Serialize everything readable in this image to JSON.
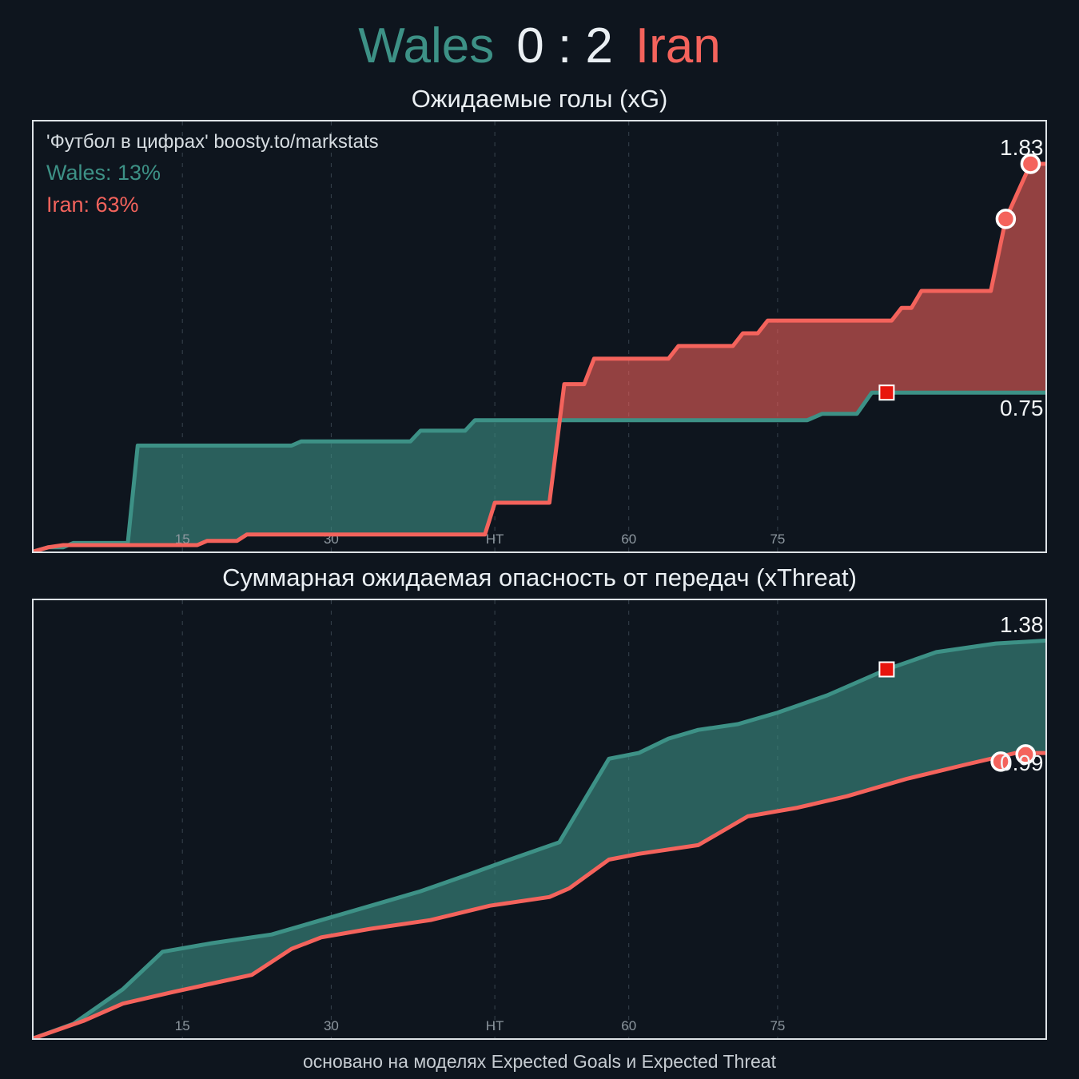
{
  "scoreboard": {
    "home": "Wales",
    "score": "0 : 2",
    "away": "Iran"
  },
  "watermark": {
    "credit": "'Футбол в цифрах' boosty.to/markstats",
    "home_prob": "Wales: 13%",
    "away_prob": "Iran: 63%"
  },
  "footer": {
    "note": "основано на моделях Expected Goals и Expected Threat"
  },
  "theme": {
    "bg": "#0e151e",
    "panel_border": "#dde2e6",
    "grid": "#37424d",
    "tick": "#8d979f",
    "text": "#eaeff3",
    "muted": "#c5cbd1",
    "muted_strong": "#d6dce1",
    "home": "#3d9186",
    "away": "#f4635c",
    "marker_red": "#e8150d",
    "label": "#f2f5f7"
  },
  "chart_data": [
    {
      "type": "line",
      "title": "Ожидаемые голы (xG)",
      "xlim": [
        0,
        102
      ],
      "ylim": [
        0,
        2.03
      ],
      "grid": "vertical-dashed",
      "legend": "none",
      "x_ticks": [
        {
          "value": 15,
          "label": "15"
        },
        {
          "value": 30,
          "label": "30"
        },
        {
          "value": 46.5,
          "label": "HT"
        },
        {
          "value": 60,
          "label": "60"
        },
        {
          "value": 75,
          "label": "75"
        }
      ],
      "series": [
        {
          "name": "Wales",
          "color": "#3d9186",
          "fill_opacity": 0.6,
          "end_value": 0.75,
          "points": [
            [
              0,
              0
            ],
            [
              1.5,
              0.02
            ],
            [
              3,
              0.02
            ],
            [
              4,
              0.04
            ],
            [
              9.5,
              0.04
            ],
            [
              10.5,
              0.5
            ],
            [
              26,
              0.5
            ],
            [
              27,
              0.52
            ],
            [
              38,
              0.52
            ],
            [
              39,
              0.57
            ],
            [
              43.5,
              0.57
            ],
            [
              44.5,
              0.62
            ],
            [
              78,
              0.62
            ],
            [
              79.5,
              0.65
            ],
            [
              83,
              0.65
            ],
            [
              84.5,
              0.75
            ],
            [
              102,
              0.75
            ]
          ]
        },
        {
          "name": "Iran",
          "color": "#f4635c",
          "fill_opacity": 0.58,
          "end_value": 1.83,
          "points": [
            [
              0,
              0
            ],
            [
              1.5,
              0.02
            ],
            [
              3,
              0.03
            ],
            [
              16.5,
              0.03
            ],
            [
              17.5,
              0.05
            ],
            [
              20.5,
              0.05
            ],
            [
              21.5,
              0.08
            ],
            [
              45.5,
              0.08
            ],
            [
              46.5,
              0.23
            ],
            [
              52,
              0.23
            ],
            [
              53.5,
              0.79
            ],
            [
              55.5,
              0.79
            ],
            [
              56.5,
              0.91
            ],
            [
              64,
              0.91
            ],
            [
              65,
              0.97
            ],
            [
              70.5,
              0.97
            ],
            [
              71.5,
              1.03
            ],
            [
              73,
              1.03
            ],
            [
              74,
              1.09
            ],
            [
              86.5,
              1.09
            ],
            [
              87.5,
              1.15
            ],
            [
              88.5,
              1.15
            ],
            [
              89.5,
              1.23
            ],
            [
              96.5,
              1.23
            ],
            [
              98,
              1.57
            ],
            [
              100.5,
              1.83
            ],
            [
              102,
              1.83
            ]
          ]
        }
      ],
      "markers": [
        {
          "shape": "square",
          "name": "red-card-marker",
          "x": 86,
          "y": 0.75,
          "color": "#e8150d"
        },
        {
          "shape": "circle",
          "name": "goal-marker",
          "x": 98,
          "y": 1.57,
          "color": "#f4635c"
        },
        {
          "shape": "circle",
          "name": "goal-marker",
          "x": 100.5,
          "y": 1.83,
          "color": "#f4635c"
        }
      ],
      "annotations": [
        {
          "text": "1.83",
          "x": 101.8,
          "y": 1.9
        },
        {
          "text": "0.75",
          "x": 101.8,
          "y": 0.67
        }
      ]
    },
    {
      "type": "line",
      "title": "Суммарная ожидаемая опасность от передач (xThreat)",
      "xlim": [
        0,
        102
      ],
      "ylim": [
        0,
        1.52
      ],
      "grid": "vertical-dashed",
      "legend": "none",
      "x_ticks": [
        {
          "value": 15,
          "label": "15"
        },
        {
          "value": 30,
          "label": "30"
        },
        {
          "value": 46.5,
          "label": "HT"
        },
        {
          "value": 60,
          "label": "60"
        },
        {
          "value": 75,
          "label": "75"
        }
      ],
      "series": [
        {
          "name": "Wales",
          "color": "#3d9186",
          "fill_opacity": 0.6,
          "end_value": 1.38,
          "points": [
            [
              0,
              0
            ],
            [
              4,
              0.05
            ],
            [
              9,
              0.17
            ],
            [
              13,
              0.3
            ],
            [
              18,
              0.33
            ],
            [
              24,
              0.36
            ],
            [
              29,
              0.41
            ],
            [
              34,
              0.46
            ],
            [
              39,
              0.51
            ],
            [
              44,
              0.57
            ],
            [
              48,
              0.62
            ],
            [
              53,
              0.68
            ],
            [
              58,
              0.97
            ],
            [
              61,
              0.99
            ],
            [
              64,
              1.04
            ],
            [
              67,
              1.07
            ],
            [
              71,
              1.09
            ],
            [
              75,
              1.13
            ],
            [
              80,
              1.19
            ],
            [
              86,
              1.28
            ],
            [
              91,
              1.34
            ],
            [
              97,
              1.37
            ],
            [
              102,
              1.38
            ]
          ]
        },
        {
          "name": "Iran",
          "color": "#f4635c",
          "fill_opacity": 0.58,
          "end_value": 0.99,
          "points": [
            [
              0,
              0
            ],
            [
              5,
              0.06
            ],
            [
              9,
              0.12
            ],
            [
              14,
              0.16
            ],
            [
              18,
              0.19
            ],
            [
              22,
              0.22
            ],
            [
              26,
              0.31
            ],
            [
              29,
              0.35
            ],
            [
              34,
              0.38
            ],
            [
              40,
              0.41
            ],
            [
              46,
              0.46
            ],
            [
              52,
              0.49
            ],
            [
              54,
              0.52
            ],
            [
              58,
              0.62
            ],
            [
              61,
              0.64
            ],
            [
              67,
              0.67
            ],
            [
              72,
              0.77
            ],
            [
              77,
              0.8
            ],
            [
              82,
              0.84
            ],
            [
              88,
              0.9
            ],
            [
              94,
              0.95
            ],
            [
              99,
              0.99
            ],
            [
              102,
              0.99
            ]
          ]
        }
      ],
      "markers": [
        {
          "shape": "square",
          "name": "red-card-marker",
          "x": 86,
          "y": 1.28,
          "color": "#e8150d"
        },
        {
          "shape": "circle",
          "name": "goal-marker",
          "x": 97.5,
          "y": 0.96,
          "color": "#f4635c"
        },
        {
          "shape": "circle",
          "name": "goal-marker",
          "x": 100,
          "y": 0.985,
          "color": "#f4635c"
        }
      ],
      "annotations": [
        {
          "text": "1.38",
          "x": 101.8,
          "y": 1.43
        },
        {
          "text": "0.99",
          "x": 101.8,
          "y": 0.95
        }
      ]
    }
  ]
}
